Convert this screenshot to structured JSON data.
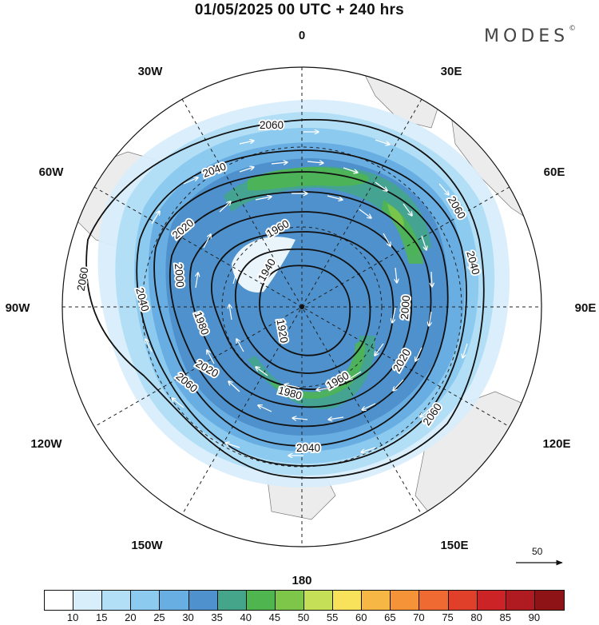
{
  "title": "01/05/2025  00 UTC  + 240 hrs",
  "brand": "MODES",
  "brand_mark": "©",
  "longitude_labels": {
    "top": "0",
    "bottom": "180",
    "lon30w": "30W",
    "lon30e": "30E",
    "lon60w": "60W",
    "lon60e": "60E",
    "lon90w": "90W",
    "lon90e": "90E",
    "lon120w": "120W",
    "lon120e": "120E",
    "lon150w": "150W",
    "lon150e": "150E"
  },
  "contour_labels": {
    "c2060_top": "2060",
    "c2060_left": "2060",
    "c2060_right": "2060",
    "c2060_lowleft": "2060",
    "c2060_lowright": "2060",
    "c2040_top": "2040",
    "c2040_left": "2040",
    "c2040_right": "2040",
    "c2040_bottom": "2040",
    "c2020_left": "2020",
    "c2020_upleft": "2020",
    "c2020_right": "2020",
    "c2020_lower": "2020",
    "c2000_left": "2000",
    "c2000_right": "2000",
    "c1980_left": "1980",
    "c1980_bottom": "1980",
    "c1960_top": "1960",
    "c1960_bottom": "1960",
    "c1940": "1940",
    "c1920": "1920"
  },
  "reference_vector": "50",
  "colorbar": {
    "colors": [
      "#ffffff",
      "#d8eefb",
      "#b3dff6",
      "#8ccaef",
      "#69aee2",
      "#4e91cc",
      "#45a58b",
      "#4fb64f",
      "#7ec64a",
      "#c5df56",
      "#f9e25b",
      "#f7b745",
      "#f59338",
      "#ef6a32",
      "#e0402a",
      "#cc2426",
      "#b01b22",
      "#8e1316"
    ],
    "ticks": [
      "10",
      "15",
      "20",
      "25",
      "30",
      "35",
      "40",
      "45",
      "50",
      "55",
      "60",
      "65",
      "70",
      "75",
      "80",
      "85",
      "90"
    ]
  }
}
